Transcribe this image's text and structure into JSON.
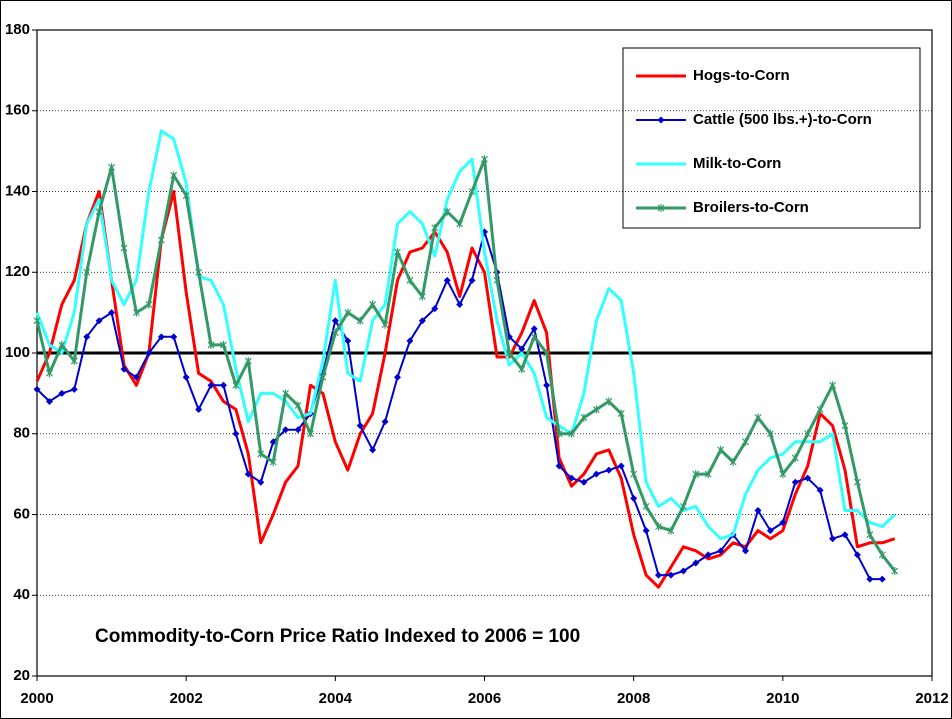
{
  "chart_data": {
    "type": "line",
    "annotation": "Commodity-to-Corn Price Ratio Indexed to 2006 = 100",
    "x": [
      2000,
      2000.167,
      2000.333,
      2000.5,
      2000.667,
      2000.833,
      2001,
      2001.167,
      2001.333,
      2001.5,
      2001.667,
      2001.833,
      2002,
      2002.167,
      2002.333,
      2002.5,
      2002.667,
      2002.833,
      2003,
      2003.167,
      2003.333,
      2003.5,
      2003.667,
      2003.833,
      2004,
      2004.167,
      2004.333,
      2004.5,
      2004.667,
      2004.833,
      2005,
      2005.167,
      2005.333,
      2005.5,
      2005.667,
      2005.833,
      2006,
      2006.167,
      2006.333,
      2006.5,
      2006.667,
      2006.833,
      2007,
      2007.167,
      2007.333,
      2007.5,
      2007.667,
      2007.833,
      2008,
      2008.167,
      2008.333,
      2008.5,
      2008.667,
      2008.833,
      2009,
      2009.167,
      2009.333,
      2009.5,
      2009.667,
      2009.833,
      2010,
      2010.167,
      2010.333,
      2010.5,
      2010.667,
      2010.833,
      2011,
      2011.167,
      2011.333,
      2011.5
    ],
    "series": [
      {
        "name": "Hogs-to-Corn",
        "color": "#ff0000",
        "values": [
          93,
          100,
          112,
          118,
          132,
          140,
          118,
          97,
          92,
          100,
          128,
          140,
          115,
          95,
          93,
          88,
          86,
          75,
          53,
          60,
          68,
          72,
          92,
          90,
          78,
          71,
          80,
          85,
          100,
          118,
          125,
          126,
          130,
          125,
          114,
          126,
          120,
          99,
          99,
          105,
          113,
          105,
          74,
          67,
          70,
          75,
          76,
          69,
          55,
          45,
          42,
          47,
          52,
          51,
          49,
          50,
          53,
          52,
          56,
          54,
          56,
          65,
          72,
          85,
          82,
          71,
          52,
          53,
          53,
          54
        ]
      },
      {
        "name": "Cattle (500 lbs.+)-to-Corn",
        "color": "#0000cc",
        "marker": "diamond",
        "values": [
          91,
          88,
          90,
          91,
          104,
          108,
          110,
          96,
          94,
          100,
          104,
          104,
          94,
          86,
          92,
          92,
          80,
          70,
          68,
          78,
          81,
          81,
          85,
          95,
          108,
          103,
          82,
          76,
          83,
          94,
          103,
          108,
          111,
          118,
          112,
          118,
          130,
          120,
          104,
          101,
          106,
          92,
          72,
          69,
          68,
          70,
          71,
          72,
          64,
          56,
          45,
          45,
          46,
          48,
          50,
          51,
          55,
          51,
          61,
          56,
          58,
          68,
          69,
          66,
          54,
          55,
          50,
          44,
          44,
          null
        ]
      },
      {
        "name": "Milk-to-Corn",
        "color": "#33ffff",
        "values": [
          110,
          102,
          100,
          110,
          132,
          138,
          118,
          112,
          118,
          140,
          155,
          153,
          142,
          119,
          118,
          112,
          96,
          83,
          90,
          90,
          88,
          84,
          85,
          98,
          118,
          95,
          93,
          108,
          112,
          132,
          135,
          132,
          124,
          138,
          145,
          148,
          125,
          108,
          97,
          100,
          95,
          84,
          82,
          80,
          90,
          108,
          116,
          113,
          95,
          68,
          62,
          64,
          61,
          62,
          57,
          54,
          55,
          65,
          71,
          74,
          75,
          78,
          78,
          78,
          80,
          61,
          61,
          58,
          57,
          60
        ]
      },
      {
        "name": "Broilers-to-Corn",
        "color": "#339966",
        "marker": "asterisk",
        "values": [
          108,
          95,
          102,
          98,
          120,
          135,
          146,
          126,
          110,
          112,
          128,
          144,
          139,
          120,
          102,
          102,
          92,
          98,
          75,
          73,
          90,
          87,
          80,
          94,
          105,
          110,
          108,
          112,
          107,
          125,
          118,
          114,
          131,
          135,
          132,
          140,
          148,
          118,
          100,
          96,
          104,
          100,
          80,
          80,
          84,
          86,
          88,
          85,
          70,
          62,
          57,
          56,
          62,
          70,
          70,
          76,
          73,
          78,
          84,
          80,
          70,
          74,
          80,
          86,
          92,
          82,
          68,
          55,
          50,
          46
        ]
      }
    ],
    "reference_line": 100,
    "xlim": [
      2000,
      2012
    ],
    "xticks": [
      2000,
      2002,
      2004,
      2006,
      2008,
      2010,
      2012
    ],
    "ylim": [
      20,
      180
    ],
    "yticks": [
      20,
      40,
      60,
      80,
      100,
      120,
      140,
      160,
      180
    ],
    "grid": true,
    "legend": "upper right"
  }
}
